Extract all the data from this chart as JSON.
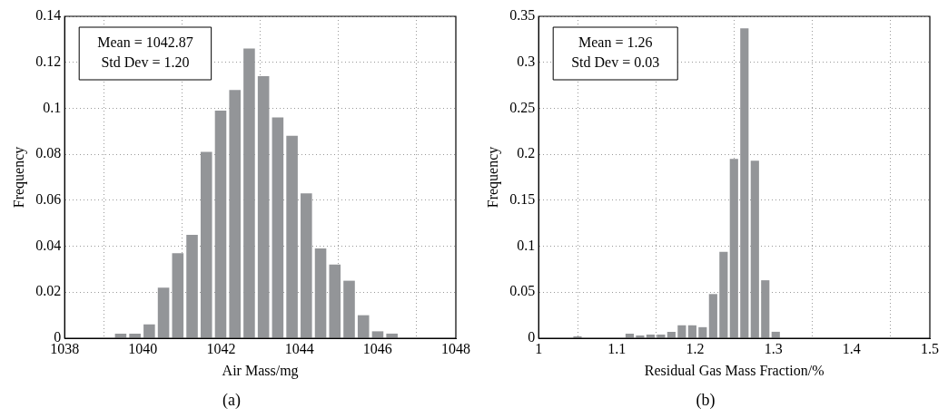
{
  "chart_data": [
    {
      "type": "histogram",
      "title": "(a)",
      "xlabel": "Air Mass/mg",
      "ylabel": "Frequency",
      "bins": [
        1039.25,
        1039.615,
        1039.98,
        1040.345,
        1040.71,
        1041.075,
        1041.44,
        1041.805,
        1042.17,
        1042.535,
        1042.9,
        1043.265,
        1043.63,
        1043.995,
        1044.36,
        1044.725,
        1045.09,
        1045.455,
        1045.82,
        1046.185,
        1046.55
      ],
      "values": [
        0.002,
        0.002,
        0.006,
        0.022,
        0.037,
        0.045,
        0.081,
        0.099,
        0.108,
        0.126,
        0.114,
        0.096,
        0.088,
        0.063,
        0.039,
        0.032,
        0.025,
        0.01,
        0.003,
        0.002
      ],
      "color": "#939598",
      "xlim": [
        1038,
        1048
      ],
      "xticks": [
        1038,
        1040,
        1042,
        1044,
        1046,
        1048
      ],
      "ylim": [
        0,
        0.14
      ],
      "yticks": [
        0,
        0.02,
        0.04,
        0.06,
        0.08,
        0.1,
        0.12,
        0.14
      ],
      "grid": true,
      "annotations": [
        "Mean = 1042.87",
        "Std Dev = 1.20"
      ]
    },
    {
      "type": "histogram",
      "title": "(b)",
      "xlabel": "Residual Gas Mass Fraction/%",
      "ylabel": "Frequency",
      "bins": [
        1.043,
        1.0563,
        1.0697,
        1.083,
        1.0963,
        1.1097,
        1.123,
        1.1363,
        1.1497,
        1.163,
        1.1763,
        1.1897,
        1.203,
        1.2163,
        1.2297,
        1.243,
        1.2563,
        1.2697,
        1.283,
        1.2963,
        1.3097
      ],
      "values": [
        0.002,
        0,
        0,
        0,
        0,
        0.005,
        0.003,
        0.004,
        0.004,
        0.007,
        0.014,
        0.014,
        0.012,
        0.048,
        0.094,
        0.195,
        0.337,
        0.193,
        0.063,
        0.007
      ],
      "color": "#939598",
      "xlim": [
        1,
        1.5
      ],
      "xticks": [
        1,
        1.1,
        1.2,
        1.3,
        1.4,
        1.5
      ],
      "ylim": [
        0,
        0.35
      ],
      "yticks": [
        0,
        0.05,
        0.1,
        0.15,
        0.2,
        0.25,
        0.3,
        0.35
      ],
      "grid": true,
      "annotations": [
        "Mean = 1.26",
        "Std Dev = 0.03"
      ]
    }
  ]
}
